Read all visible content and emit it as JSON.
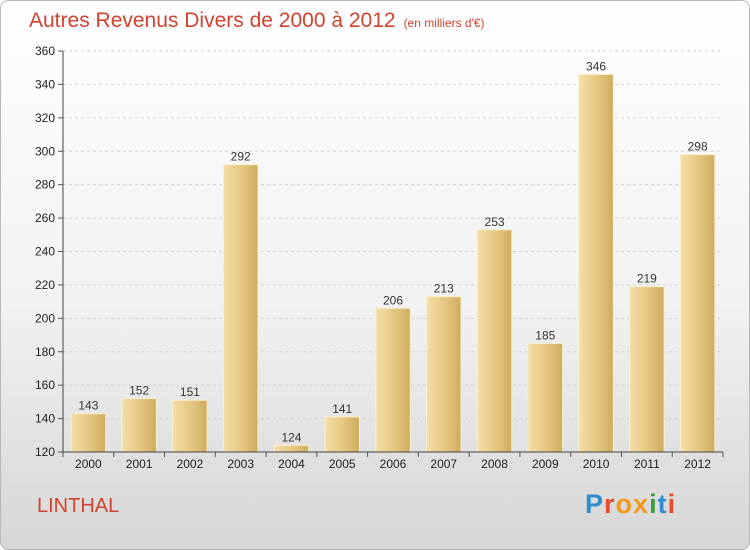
{
  "header": {
    "title": "Autres Revenus Divers de 2000 à 2012",
    "subtitle": "(en milliers d'€)"
  },
  "footer": {
    "place": "LINTHAL",
    "logo": {
      "letters": [
        "P",
        "r",
        "o",
        "x",
        "i",
        "t",
        "i"
      ],
      "colors": [
        "#2f8ccf",
        "#e8492b",
        "#f39a1c",
        "#f39a1c",
        "#3a9d3a",
        "#2f8ccf",
        "#e8492b"
      ]
    }
  },
  "chart_data": {
    "type": "bar",
    "title": "Autres Revenus Divers de 2000 à 2012",
    "subtitle": "(en milliers d'€)",
    "categories": [
      "2000",
      "2001",
      "2002",
      "2003",
      "2004",
      "2005",
      "2006",
      "2007",
      "2008",
      "2009",
      "2010",
      "2011",
      "2012"
    ],
    "values": [
      143,
      152,
      151,
      292,
      124,
      141,
      206,
      213,
      253,
      185,
      346,
      219,
      298
    ],
    "value_labels": [
      "143",
      "152",
      "151",
      "292",
      "124",
      "141",
      "206",
      "213",
      "253",
      "185",
      "346",
      "219",
      "298"
    ],
    "xlabel": "",
    "ylabel": "",
    "ylim": [
      120,
      360
    ],
    "yticks": [
      120,
      140,
      160,
      180,
      200,
      220,
      240,
      260,
      280,
      300,
      320,
      340,
      360
    ],
    "ytick_labels": [
      "120",
      "140",
      "160",
      "180",
      "200",
      "220",
      "240",
      "260",
      "280",
      "300",
      "320",
      "340",
      "360"
    ],
    "grid": true,
    "legend": "none",
    "bar_color": "#e6c27a"
  }
}
